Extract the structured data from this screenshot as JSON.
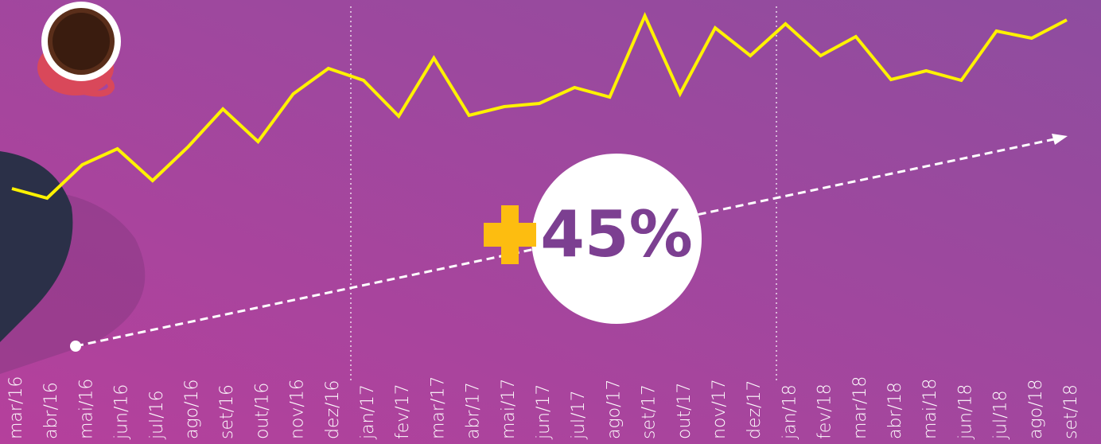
{
  "chart_data": {
    "type": "line",
    "categories": [
      "mar/16",
      "abr/16",
      "mai/16",
      "jun/16",
      "jul/16",
      "ago/16",
      "set/16",
      "out/16",
      "nov/16",
      "dez/16",
      "jan/17",
      "fev/17",
      "mar/17",
      "abr/17",
      "mai/17",
      "jun/17",
      "jul/17",
      "ago/17",
      "set/17",
      "out/17",
      "nov/17",
      "dez/17",
      "jan/18",
      "fev/18",
      "mar/18",
      "abr/18",
      "mai/18",
      "jun/18",
      "jul/18",
      "ago/18",
      "set/18"
    ],
    "values": [
      63,
      51,
      93,
      113,
      73,
      115,
      163,
      122,
      182,
      214,
      199,
      154,
      227,
      155,
      166,
      170,
      190,
      178,
      280,
      182,
      265,
      230,
      270,
      230,
      254,
      200,
      211,
      199,
      261,
      252,
      275
    ],
    "color": "#fff200",
    "annotation": "45%"
  }
}
